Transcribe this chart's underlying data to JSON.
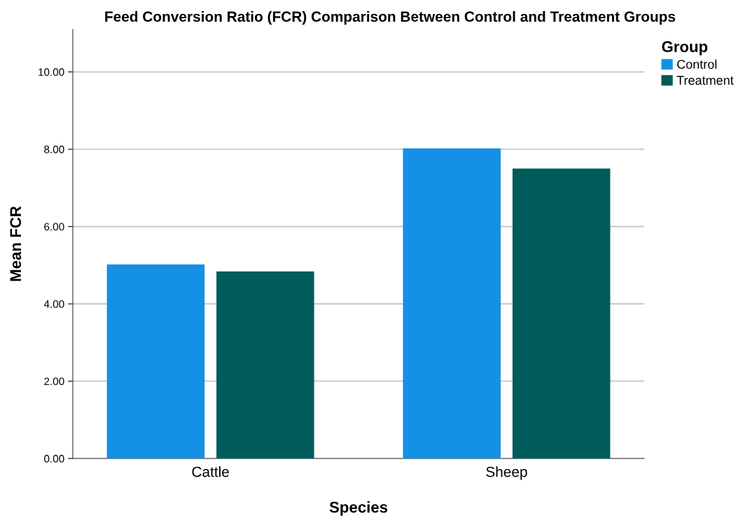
{
  "chart_data": {
    "type": "bar",
    "title": "Feed Conversion Ratio (FCR) Comparison Between Control and Treatment Groups",
    "xlabel": "Species",
    "ylabel": "Mean FCR",
    "legend_title": "Group",
    "categories": [
      "Cattle",
      "Sheep"
    ],
    "series": [
      {
        "name": "Control",
        "color": "#1490e4",
        "values": [
          5.02,
          8.02
        ]
      },
      {
        "name": "Treatment",
        "color": "#005b5b",
        "values": [
          4.84,
          7.5
        ]
      }
    ],
    "ylim": [
      0,
      11.1
    ],
    "yticks": [
      {
        "value": 0,
        "label": "0.00"
      },
      {
        "value": 2,
        "label": "2.00"
      },
      {
        "value": 4,
        "label": "4.00"
      },
      {
        "value": 6,
        "label": "6.00"
      },
      {
        "value": 8,
        "label": "8.00"
      },
      {
        "value": 10,
        "label": "10.00"
      }
    ],
    "grid": "y",
    "legend": "top right"
  }
}
